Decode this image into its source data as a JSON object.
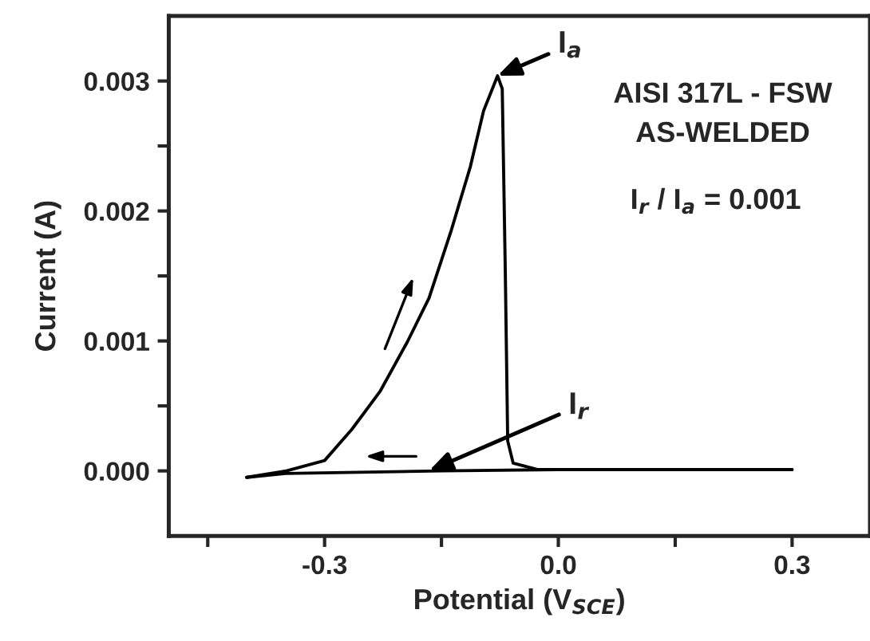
{
  "chart_data": {
    "type": "line",
    "xlabel": "Potential (V$_{SCE}$)",
    "ylabel": "Current (A)",
    "series": [
      {
        "color": "#000000",
        "x": [
          -0.4,
          -0.349,
          -0.3,
          -0.265,
          -0.229,
          -0.194,
          -0.166,
          -0.138,
          -0.113,
          -0.096,
          -0.078,
          -0.072,
          -0.068,
          -0.065,
          -0.058,
          -0.026,
          0.3
        ],
        "values": [
          -5e-05,
          0.0,
          8e-05,
          0.00032,
          0.00061,
          0.00099,
          0.00133,
          0.00184,
          0.00234,
          0.00277,
          0.00304,
          0.00294,
          0.0015,
          0.00023,
          6e-05,
          1e-05,
          1e-05
        ]
      },
      {
        "color": "#000000",
        "x": [
          0.3,
          0.0,
          -0.15,
          -0.35,
          -0.4
        ],
        "values": [
          1e-05,
          1e-05,
          0.0,
          -2e-05,
          -5e-05
        ]
      }
    ],
    "xlim": [
      -0.5,
      0.4
    ],
    "ylim": [
      -0.0005,
      0.0035
    ],
    "xticks": [
      {
        "value": -0.45,
        "label": null
      },
      {
        "value": -0.3,
        "label": "-0.3"
      },
      {
        "value": -0.15,
        "label": null
      },
      {
        "value": 0.0,
        "label": "0.0"
      },
      {
        "value": 0.15,
        "label": null
      },
      {
        "value": 0.3,
        "label": "0.3"
      }
    ],
    "yticks": [
      {
        "value": 0.0,
        "label": "0.000"
      },
      {
        "value": 0.0005,
        "label": null
      },
      {
        "value": 0.001,
        "label": "0.001"
      },
      {
        "value": 0.0015,
        "label": null
      },
      {
        "value": 0.002,
        "label": "0.002"
      },
      {
        "value": 0.0025,
        "label": null
      },
      {
        "value": 0.003,
        "label": "0.003"
      }
    ],
    "annotations": [
      {
        "text": "I$_{a}$",
        "x": -0.078,
        "y": 0.00304
      },
      {
        "text": "I$_{r}$",
        "x": -0.166,
        "y": 0.0
      },
      "AISI 317L - FSW\nAS-WELDED",
      "I$_{r}$ / I$_{a}$ = 0.001"
    ],
    "grid": false,
    "legend": false,
    "marker": "none",
    "line_style": "solid"
  }
}
